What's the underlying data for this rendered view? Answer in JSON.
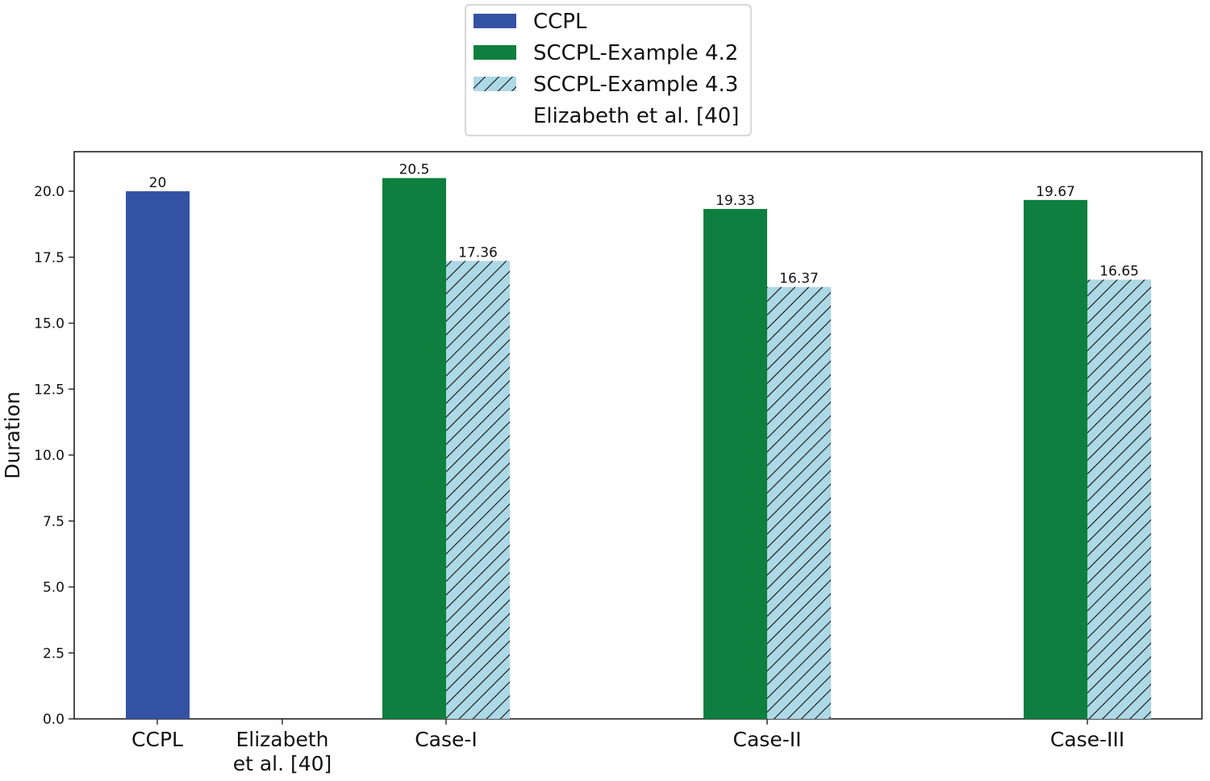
{
  "chart_data": {
    "type": "bar",
    "xlabel": "",
    "ylabel": "Duration",
    "ylim": [
      0,
      21.5
    ],
    "yticks": [
      "0.0",
      "2.5",
      "5.0",
      "7.5",
      "10.0",
      "12.5",
      "15.0",
      "17.5",
      "20.0"
    ],
    "grid": false,
    "legend_position": "top-center",
    "categories": [
      {
        "label_lines": [
          "CCPL"
        ]
      },
      {
        "label_lines": [
          "Elizabeth",
          "et al. [40]"
        ]
      },
      {
        "label_lines": [
          "Case-I"
        ]
      },
      {
        "label_lines": [
          "Case-II"
        ]
      },
      {
        "label_lines": [
          "Case-III"
        ]
      }
    ],
    "series": [
      {
        "name": "CCPL",
        "color": "#3452A3",
        "hatch": false,
        "values": [
          20,
          null,
          null,
          null,
          null
        ],
        "labels": [
          "20",
          null,
          null,
          null,
          null
        ]
      },
      {
        "name": "SCCPL-Example 4.2",
        "color": "#0E7F3E",
        "hatch": false,
        "values": [
          null,
          null,
          20.5,
          19.33,
          19.67
        ],
        "labels": [
          null,
          null,
          "20.5",
          "19.33",
          "19.67"
        ]
      },
      {
        "name": "SCCPL-Example 4.3",
        "color": "#ADD8E6",
        "hatch": true,
        "values": [
          null,
          null,
          17.36,
          16.37,
          16.65
        ],
        "labels": [
          null,
          null,
          "17.36",
          "16.37",
          "16.65"
        ]
      },
      {
        "name": "Elizabeth et al. [40]",
        "color": "#ffffff",
        "hatch": false,
        "values": [
          null,
          null,
          null,
          null,
          null
        ],
        "labels": [
          null,
          null,
          null,
          null,
          null
        ]
      }
    ]
  }
}
